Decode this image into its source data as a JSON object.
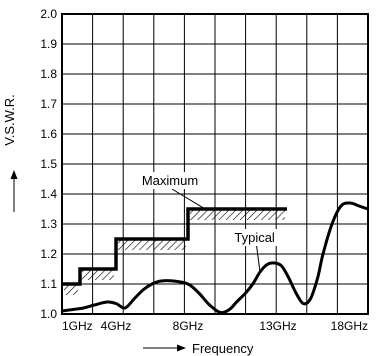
{
  "chart_data": {
    "type": "line",
    "title": "",
    "xlabel": "Frequency",
    "ylabel": "V.S.W.R.",
    "x_ticks": [
      {
        "label": "1GHz",
        "value": 1
      },
      {
        "label": "4GHz",
        "value": 4
      },
      {
        "label": "8GHz",
        "value": 8
      },
      {
        "label": "13GHz",
        "value": 13
      },
      {
        "label": "18GHz",
        "value": 18
      }
    ],
    "y_ticks": [
      "1.0",
      "1.1",
      "1.2",
      "1.3",
      "1.4",
      "1.5",
      "1.6",
      "1.7",
      "1.8",
      "1.9",
      "2.0"
    ],
    "xlim": [
      1,
      18
    ],
    "ylim": [
      1.0,
      2.0
    ],
    "grid": true,
    "annotations": [
      {
        "text": "Maximum",
        "x": 7.0,
        "y": 1.43
      },
      {
        "text": "Typical",
        "x": 11.7,
        "y": 1.24
      }
    ],
    "series": [
      {
        "name": "Maximum",
        "style": "step",
        "x": [
          1,
          2,
          2,
          4,
          4,
          8,
          8,
          13.5
        ],
        "y": [
          1.1,
          1.1,
          1.15,
          1.15,
          1.25,
          1.25,
          1.35,
          1.35
        ]
      },
      {
        "name": "Typical",
        "style": "line",
        "x": [
          1,
          1.6,
          2.2,
          2.8,
          3.5,
          4.0,
          4.5,
          5.0,
          5.5,
          6.0,
          6.5,
          7.2,
          8.0,
          8.6,
          9.2,
          9.8,
          10.3,
          10.7,
          11.2,
          11.6,
          12.0,
          12.4,
          12.8,
          13.2,
          13.6,
          14.0,
          14.4,
          14.8,
          15.2,
          15.5,
          16.0,
          16.5,
          17.0,
          17.5,
          18.0
        ],
        "y": [
          1.01,
          1.015,
          1.02,
          1.03,
          1.04,
          1.035,
          1.02,
          1.05,
          1.08,
          1.1,
          1.11,
          1.11,
          1.1,
          1.07,
          1.03,
          1.005,
          1.015,
          1.04,
          1.07,
          1.1,
          1.14,
          1.165,
          1.17,
          1.16,
          1.12,
          1.07,
          1.035,
          1.05,
          1.12,
          1.2,
          1.3,
          1.36,
          1.37,
          1.36,
          1.35
        ]
      }
    ]
  }
}
